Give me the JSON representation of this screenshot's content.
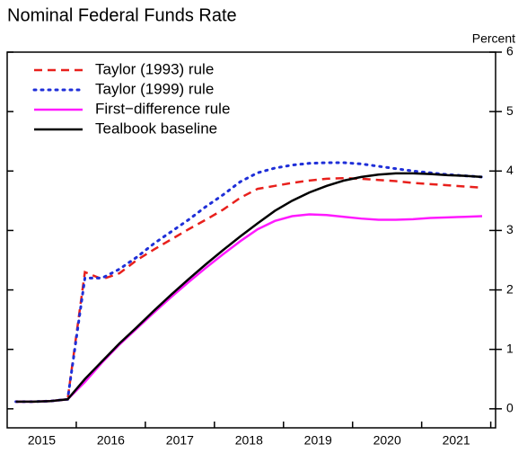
{
  "chart_data": {
    "type": "line",
    "title": "Nominal Federal Funds Rate",
    "y_label": "Percent",
    "x": [
      2015.125,
      2015.375,
      2015.625,
      2015.875,
      2016.125,
      2016.375,
      2016.625,
      2016.875,
      2017.125,
      2017.375,
      2017.625,
      2017.875,
      2018.125,
      2018.375,
      2018.625,
      2018.875,
      2019.125,
      2019.375,
      2019.625,
      2019.875,
      2020.125,
      2020.375,
      2020.625,
      2020.875,
      2021.125,
      2021.375,
      2021.625,
      2021.875
    ],
    "series": [
      {
        "name": "Taylor (1993) rule",
        "color": "#e8201c",
        "dash": "dashed",
        "values": [
          0.12,
          0.12,
          0.13,
          0.16,
          2.3,
          2.18,
          2.28,
          2.5,
          2.68,
          2.85,
          3.02,
          3.18,
          3.35,
          3.55,
          3.7,
          3.75,
          3.8,
          3.84,
          3.87,
          3.88,
          3.87,
          3.85,
          3.83,
          3.8,
          3.78,
          3.76,
          3.74,
          3.72
        ]
      },
      {
        "name": "Taylor (1999) rule",
        "color": "#1f2fd8",
        "dash": "dotted",
        "values": [
          0.12,
          0.12,
          0.13,
          0.16,
          2.2,
          2.2,
          2.35,
          2.55,
          2.78,
          2.98,
          3.18,
          3.4,
          3.6,
          3.82,
          3.97,
          4.05,
          4.1,
          4.13,
          4.14,
          4.14,
          4.12,
          4.08,
          4.04,
          4.0,
          3.97,
          3.94,
          3.92,
          3.9
        ]
      },
      {
        "name": "First−difference rule",
        "color": "#ff1aff",
        "dash": "solid",
        "values": [
          0.12,
          0.12,
          0.13,
          0.16,
          0.45,
          0.78,
          1.08,
          1.35,
          1.62,
          1.88,
          2.13,
          2.37,
          2.6,
          2.82,
          3.02,
          3.16,
          3.24,
          3.27,
          3.26,
          3.23,
          3.2,
          3.18,
          3.18,
          3.19,
          3.21,
          3.22,
          3.23,
          3.24
        ]
      },
      {
        "name": "Tealbook baseline",
        "color": "#000000",
        "dash": "solid",
        "values": [
          0.12,
          0.12,
          0.13,
          0.16,
          0.5,
          0.8,
          1.1,
          1.37,
          1.65,
          1.92,
          2.18,
          2.43,
          2.67,
          2.9,
          3.12,
          3.33,
          3.5,
          3.64,
          3.75,
          3.84,
          3.9,
          3.94,
          3.96,
          3.96,
          3.95,
          3.93,
          3.92,
          3.9
        ]
      }
    ],
    "xlim": [
      2015,
      2022.07
    ],
    "xticks": [
      {
        "value": 2015.5,
        "label": "2015"
      },
      {
        "value": 2016.5,
        "label": "2016"
      },
      {
        "value": 2017.5,
        "label": "2017"
      },
      {
        "value": 2018.5,
        "label": "2018"
      },
      {
        "value": 2019.5,
        "label": "2019"
      },
      {
        "value": 2020.5,
        "label": "2020"
      },
      {
        "value": 2021.5,
        "label": "2021"
      }
    ],
    "ylim": [
      -0.32,
      6
    ],
    "yticks": [
      0,
      1,
      2,
      3,
      4,
      5,
      6
    ]
  }
}
